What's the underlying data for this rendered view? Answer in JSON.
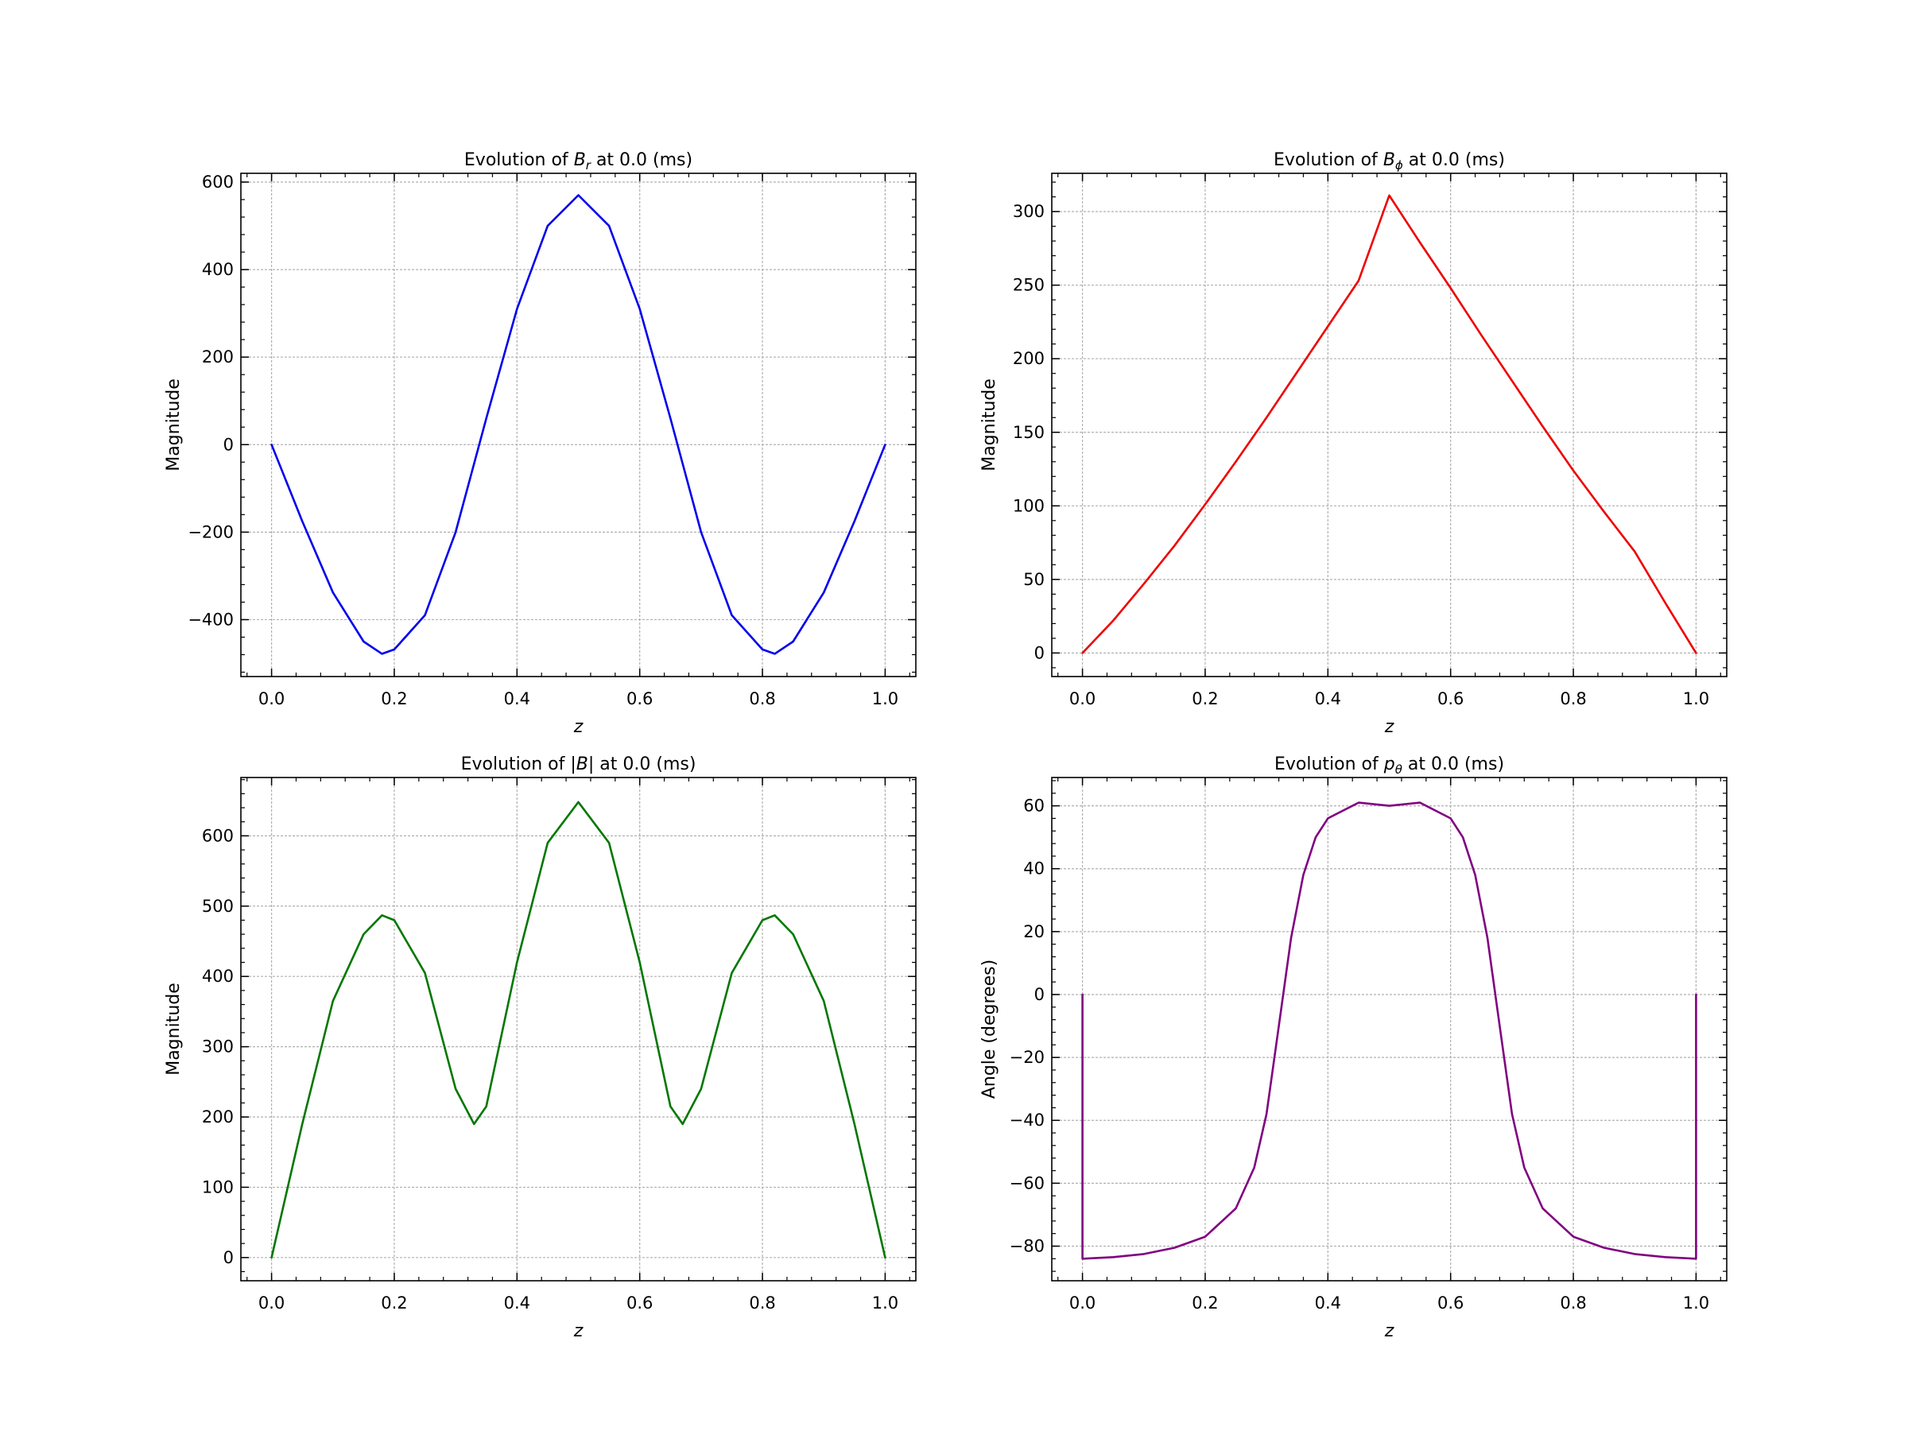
{
  "figure": {
    "background": "#ffffff",
    "grid_color": "#b0b0b0"
  },
  "chart_data": [
    {
      "type": "line",
      "title": "Evolution of B_r at 0.0 (ms)",
      "title_parts": {
        "prefix": "Evolution of ",
        "symbol": "B",
        "subscript": "r",
        "suffix": " at 0.0 (ms)"
      },
      "xlabel": "z",
      "ylabel": "Magnitude",
      "xlim": [
        -0.05,
        1.05
      ],
      "ylim": [
        -530,
        620
      ],
      "xticks": [
        0.0,
        0.2,
        0.4,
        0.6,
        0.8,
        1.0
      ],
      "xtick_labels": [
        "0.0",
        "0.2",
        "0.4",
        "0.6",
        "0.8",
        "1.0"
      ],
      "yticks": [
        -400,
        -200,
        0,
        200,
        400,
        600
      ],
      "ytick_labels": [
        "−400",
        "−200",
        "0",
        "200",
        "400",
        "600"
      ],
      "grid": true,
      "legend": "none",
      "series": [
        {
          "color": "#0000ee",
          "x": [
            0.0,
            0.05,
            0.1,
            0.15,
            0.18,
            0.2,
            0.25,
            0.3,
            0.35,
            0.4,
            0.45,
            0.5,
            0.55,
            0.6,
            0.65,
            0.7,
            0.75,
            0.8,
            0.82,
            0.85,
            0.9,
            0.95,
            1.0
          ],
          "y": [
            0,
            -175,
            -338,
            -450,
            -478,
            -468,
            -390,
            -200,
            60,
            310,
            500,
            570,
            500,
            310,
            60,
            -200,
            -390,
            -468,
            -478,
            -450,
            -338,
            -175,
            0
          ]
        }
      ]
    },
    {
      "type": "line",
      "title": "Evolution of B_phi at 0.0 (ms)",
      "title_parts": {
        "prefix": "Evolution of ",
        "symbol": "B",
        "subscript": "ϕ",
        "suffix": " at 0.0 (ms)"
      },
      "xlabel": "z",
      "ylabel": "Magnitude",
      "xlim": [
        -0.05,
        1.05
      ],
      "ylim": [
        -16,
        326
      ],
      "xticks": [
        0.0,
        0.2,
        0.4,
        0.6,
        0.8,
        1.0
      ],
      "xtick_labels": [
        "0.0",
        "0.2",
        "0.4",
        "0.6",
        "0.8",
        "1.0"
      ],
      "yticks": [
        0,
        50,
        100,
        150,
        200,
        250,
        300
      ],
      "ytick_labels": [
        "0",
        "50",
        "100",
        "150",
        "200",
        "250",
        "300"
      ],
      "grid": true,
      "legend": "none",
      "series": [
        {
          "color": "#ee0000",
          "x": [
            0.0,
            0.05,
            0.1,
            0.15,
            0.2,
            0.25,
            0.3,
            0.35,
            0.4,
            0.45,
            0.5,
            0.55,
            0.6,
            0.65,
            0.7,
            0.75,
            0.8,
            0.85,
            0.9,
            0.95,
            1.0
          ],
          "y": [
            0,
            22,
            47,
            73,
            101,
            130,
            160,
            191,
            222,
            253,
            311,
            279,
            248,
            216,
            185,
            154,
            124,
            96,
            69,
            34,
            0
          ]
        }
      ]
    },
    {
      "type": "line",
      "title": "Evolution of |B| at 0.0 (ms)",
      "title_parts": {
        "prefix": "Evolution of ",
        "symbol": "|B|",
        "subscript": "",
        "suffix": " at 0.0 (ms)"
      },
      "xlabel": "z",
      "ylabel": "Magnitude",
      "xlim": [
        -0.05,
        1.05
      ],
      "ylim": [
        -33,
        683
      ],
      "xticks": [
        0.0,
        0.2,
        0.4,
        0.6,
        0.8,
        1.0
      ],
      "xtick_labels": [
        "0.0",
        "0.2",
        "0.4",
        "0.6",
        "0.8",
        "1.0"
      ],
      "yticks": [
        0,
        100,
        200,
        300,
        400,
        500,
        600
      ],
      "ytick_labels": [
        "0",
        "100",
        "200",
        "300",
        "400",
        "500",
        "600"
      ],
      "grid": true,
      "legend": "none",
      "series": [
        {
          "color": "#007700",
          "x": [
            0.0,
            0.05,
            0.1,
            0.15,
            0.18,
            0.2,
            0.25,
            0.3,
            0.33,
            0.35,
            0.4,
            0.45,
            0.5,
            0.55,
            0.6,
            0.65,
            0.67,
            0.7,
            0.75,
            0.8,
            0.82,
            0.85,
            0.9,
            0.95,
            1.0
          ],
          "y": [
            0,
            190,
            365,
            460,
            487,
            480,
            405,
            240,
            190,
            215,
            420,
            590,
            648,
            590,
            420,
            215,
            190,
            240,
            405,
            480,
            487,
            460,
            365,
            190,
            0
          ]
        }
      ]
    },
    {
      "type": "line",
      "title": "Evolution of p_theta at 0.0 (ms)",
      "title_parts": {
        "prefix": "Evolution of ",
        "symbol": "p",
        "subscript": "θ",
        "suffix": " at 0.0 (ms)"
      },
      "xlabel": "z",
      "ylabel": "Angle (degrees)",
      "xlim": [
        -0.05,
        1.05
      ],
      "ylim": [
        -91,
        69
      ],
      "xticks": [
        0.0,
        0.2,
        0.4,
        0.6,
        0.8,
        1.0
      ],
      "xtick_labels": [
        "0.0",
        "0.2",
        "0.4",
        "0.6",
        "0.8",
        "1.0"
      ],
      "yticks": [
        -80,
        -60,
        -40,
        -20,
        0,
        20,
        40,
        60
      ],
      "ytick_labels": [
        "−80",
        "−60",
        "−40",
        "−20",
        "0",
        "20",
        "40",
        "60"
      ],
      "grid": true,
      "legend": "none",
      "series": [
        {
          "color": "#800080",
          "x": [
            0.0,
            0.0,
            0.05,
            0.1,
            0.15,
            0.2,
            0.25,
            0.28,
            0.3,
            0.32,
            0.34,
            0.36,
            0.38,
            0.4,
            0.45,
            0.5,
            0.55,
            0.6,
            0.62,
            0.64,
            0.66,
            0.68,
            0.7,
            0.72,
            0.75,
            0.8,
            0.85,
            0.9,
            0.95,
            1.0,
            1.0
          ],
          "y": [
            0,
            -84,
            -83.5,
            -82.5,
            -80.5,
            -77,
            -68,
            -55,
            -38,
            -10,
            18,
            38,
            50,
            56,
            61,
            60,
            61,
            56,
            50,
            38,
            18,
            -10,
            -38,
            -55,
            -68,
            -77,
            -80.5,
            -82.5,
            -83.5,
            -84,
            0
          ]
        }
      ]
    }
  ]
}
